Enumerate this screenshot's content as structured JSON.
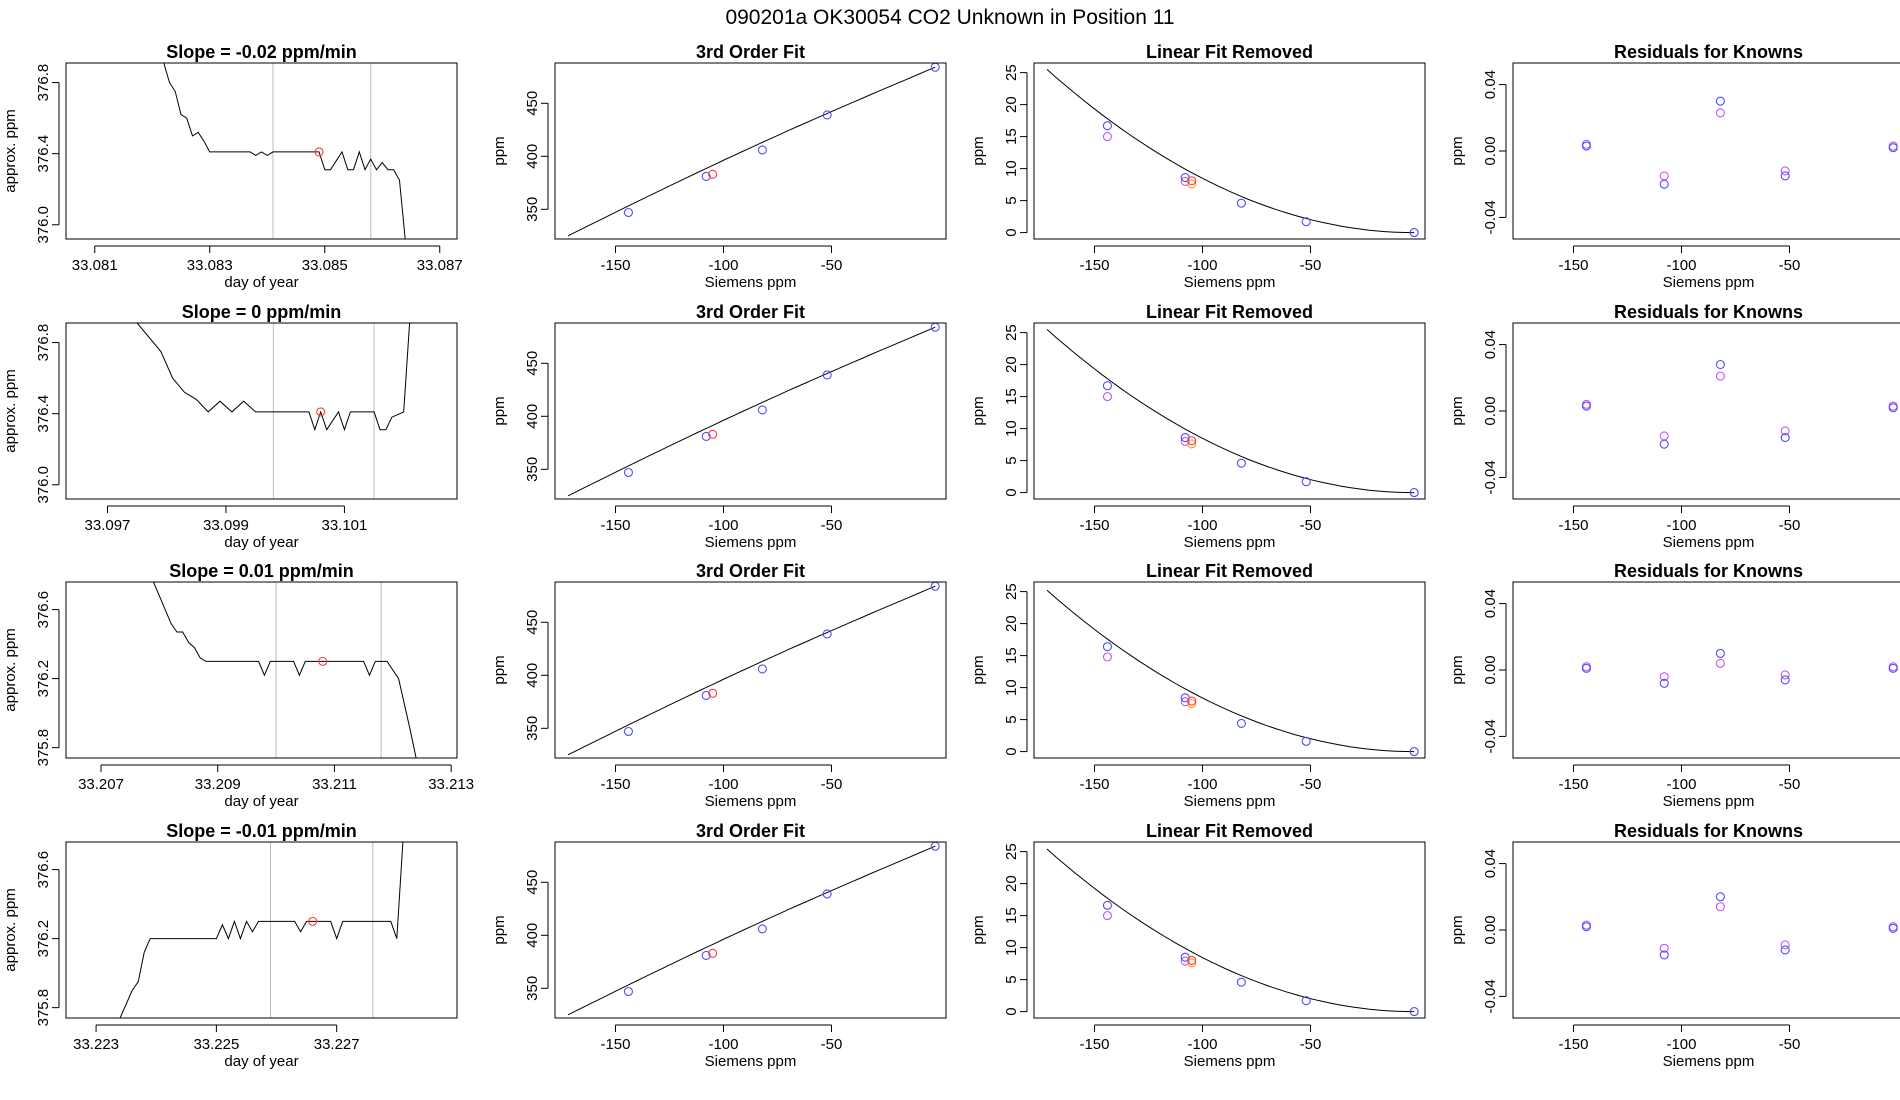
{
  "figure": {
    "title": "090201a     OK30054    CO2 Unknown in Position  11"
  },
  "colors": {
    "known": "#4b4bff",
    "known_alt": "#c454ff",
    "unknown": "#ff3b3b",
    "unknown_alt": "#ff9a1f",
    "marker": "#bdbdbd"
  },
  "chart_data": [
    {
      "type": "line",
      "title": "Slope =  -0.02  ppm/min",
      "xlabel": "day of year",
      "ylabel": "approx. ppm",
      "xlim": [
        33.0805,
        33.0873
      ],
      "ylim": [
        375.92,
        376.91
      ],
      "xticks": [
        33.081,
        33.083,
        33.085,
        33.087
      ],
      "xtick_labels": [
        "33.081",
        "33.083",
        "33.085",
        "33.087"
      ],
      "yticks": [
        376.0,
        376.4,
        376.8
      ],
      "ytick_labels": [
        "376.0",
        "376.4",
        "376.8"
      ],
      "vlines": [
        33.0841,
        33.0858
      ],
      "trace_x": [
        33.0822,
        33.0823,
        33.0824,
        33.0825,
        33.0826,
        33.0827,
        33.0828,
        33.0829,
        33.083,
        33.0831,
        33.0837,
        33.0838,
        33.0839,
        33.084,
        33.0841,
        33.0849,
        33.085,
        33.0851,
        33.0853,
        33.0854,
        33.0855,
        33.0856,
        33.0857,
        33.0858,
        33.0859,
        33.086,
        33.0861,
        33.0862,
        33.0863,
        33.0864
      ],
      "trace_y": [
        376.91,
        376.8,
        376.75,
        376.62,
        376.6,
        376.5,
        376.52,
        376.47,
        376.41,
        376.41,
        376.41,
        376.39,
        376.41,
        376.39,
        376.41,
        376.41,
        376.31,
        376.31,
        376.41,
        376.31,
        376.31,
        376.41,
        376.31,
        376.37,
        376.31,
        376.35,
        376.31,
        376.31,
        376.25,
        375.92
      ],
      "unknown_point": {
        "x": 33.0849,
        "y": 376.41
      }
    },
    {
      "type": "line",
      "title": "3rd Order Fit",
      "xlabel": "Siemens ppm",
      "ylabel": "ppm",
      "xlim": [
        -178,
        3
      ],
      "ylim": [
        322,
        488
      ],
      "xticks": [
        -150,
        -100,
        -50
      ],
      "xtick_labels": [
        "-150",
        "-100",
        "-50"
      ],
      "yticks": [
        350,
        400,
        450
      ],
      "ytick_labels": [
        "350",
        "400",
        "450"
      ],
      "curve": {
        "x1": -172,
        "x2": -2,
        "y1": 325,
        "y2": 484
      },
      "known_points": {
        "x": [
          -144,
          -108,
          -82,
          -52,
          -2
        ],
        "y": [
          347,
          381,
          406,
          439,
          484
        ]
      },
      "unknown_points": {
        "x": [
          -105
        ],
        "y": [
          383
        ]
      }
    },
    {
      "type": "line",
      "title": "Linear Fit Removed",
      "xlabel": "Siemens ppm",
      "ylabel": "ppm",
      "xlim": [
        -178,
        3
      ],
      "ylim": [
        -1,
        26.5
      ],
      "xticks": [
        -150,
        -100,
        -50
      ],
      "xtick_labels": [
        "-150",
        "-100",
        "-50"
      ],
      "yticks": [
        0,
        5,
        10,
        15,
        20,
        25
      ],
      "ytick_labels": [
        "0",
        "5",
        "10",
        "15",
        "20",
        "25"
      ],
      "curve": {
        "x1": -172,
        "x2": -2,
        "y1": 25.5,
        "y2": 0
      },
      "known_points": {
        "x": [
          -144,
          -108,
          -82,
          -52,
          -2
        ],
        "y": [
          16.7,
          8.6,
          4.6,
          1.7,
          0
        ]
      },
      "known_points_alt": {
        "x": [
          -144,
          -108
        ],
        "y": [
          15.0,
          8.0
        ]
      },
      "unknown_points": {
        "x": [
          -105
        ],
        "y": [
          8.1
        ]
      },
      "unknown_points_alt": {
        "x": [
          -105
        ],
        "y": [
          7.6
        ]
      }
    },
    {
      "type": "scatter",
      "title": "Residuals for Knowns",
      "xlabel": "Siemens ppm",
      "ylabel": "ppm",
      "xlim": [
        -178,
        3
      ],
      "ylim": [
        -0.053,
        0.053
      ],
      "xticks": [
        -150,
        -100,
        -50
      ],
      "xtick_labels": [
        "-150",
        "-100",
        "-50"
      ],
      "yticks": [
        -0.04,
        0.0,
        0.04
      ],
      "ytick_labels": [
        "-0.04",
        "0.00",
        "0.04"
      ],
      "known_points": {
        "x": [
          -144,
          -108,
          -82,
          -52,
          -2
        ],
        "y": [
          0.003,
          -0.02,
          0.03,
          -0.015,
          0.002
        ]
      },
      "known_points_alt": {
        "x": [
          -144,
          -108,
          -82,
          -52,
          -2
        ],
        "y": [
          0.004,
          -0.015,
          0.023,
          -0.012,
          0.003
        ]
      }
    },
    {
      "type": "line",
      "title": "Slope =  0  ppm/min",
      "xlabel": "day of year",
      "ylabel": "approx. ppm",
      "xlim": [
        33.0963,
        33.1029
      ],
      "ylim": [
        375.92,
        376.91
      ],
      "xticks": [
        33.097,
        33.099,
        33.101
      ],
      "xtick_labels": [
        "33.097",
        "33.099",
        "33.101"
      ],
      "yticks": [
        376.0,
        376.4,
        376.8
      ],
      "ytick_labels": [
        "376.0",
        "376.4",
        "376.8"
      ],
      "vlines": [
        33.0998,
        33.1015
      ],
      "trace_x": [
        33.0975,
        33.0979,
        33.0981,
        33.0983,
        33.0985,
        33.0987,
        33.0989,
        33.0991,
        33.0993,
        33.0995,
        33.0997,
        33.1,
        33.1004,
        33.1005,
        33.1006,
        33.1007,
        33.1009,
        33.101,
        33.1011,
        33.1015,
        33.1016,
        33.1017,
        33.1018,
        33.102,
        33.1021
      ],
      "trace_y": [
        376.91,
        376.75,
        376.6,
        376.52,
        376.48,
        376.41,
        376.47,
        376.41,
        376.47,
        376.41,
        376.41,
        376.41,
        376.41,
        376.31,
        376.41,
        376.31,
        376.41,
        376.31,
        376.41,
        376.41,
        376.31,
        376.31,
        376.38,
        376.41,
        376.91
      ],
      "unknown_point": {
        "x": 33.1006,
        "y": 376.41
      }
    },
    {
      "type": "line",
      "title": "3rd Order Fit",
      "xlabel": "Siemens ppm",
      "ylabel": "ppm",
      "xlim": [
        -178,
        3
      ],
      "ylim": [
        322,
        488
      ],
      "xticks": [
        -150,
        -100,
        -50
      ],
      "xtick_labels": [
        "-150",
        "-100",
        "-50"
      ],
      "yticks": [
        350,
        400,
        450
      ],
      "ytick_labels": [
        "350",
        "400",
        "450"
      ],
      "curve": {
        "x1": -172,
        "x2": -2,
        "y1": 325,
        "y2": 484
      },
      "known_points": {
        "x": [
          -144,
          -108,
          -82,
          -52,
          -2
        ],
        "y": [
          347,
          381,
          406,
          439,
          484
        ]
      },
      "unknown_points": {
        "x": [
          -105
        ],
        "y": [
          383
        ]
      }
    },
    {
      "type": "line",
      "title": "Linear Fit Removed",
      "xlabel": "Siemens ppm",
      "ylabel": "ppm",
      "xlim": [
        -178,
        3
      ],
      "ylim": [
        -1,
        26.5
      ],
      "xticks": [
        -150,
        -100,
        -50
      ],
      "xtick_labels": [
        "-150",
        "-100",
        "-50"
      ],
      "yticks": [
        0,
        5,
        10,
        15,
        20,
        25
      ],
      "ytick_labels": [
        "0",
        "5",
        "10",
        "15",
        "20",
        "25"
      ],
      "curve": {
        "x1": -172,
        "x2": -2,
        "y1": 25.5,
        "y2": 0
      },
      "known_points": {
        "x": [
          -144,
          -108,
          -82,
          -52,
          -2
        ],
        "y": [
          16.7,
          8.6,
          4.6,
          1.7,
          0
        ]
      },
      "known_points_alt": {
        "x": [
          -144,
          -108
        ],
        "y": [
          15.0,
          8.0
        ]
      },
      "unknown_points": {
        "x": [
          -105
        ],
        "y": [
          8.1
        ]
      },
      "unknown_points_alt": {
        "x": [
          -105
        ],
        "y": [
          7.6
        ]
      }
    },
    {
      "type": "scatter",
      "title": "Residuals for Knowns",
      "xlabel": "Siemens ppm",
      "ylabel": "ppm",
      "xlim": [
        -178,
        3
      ],
      "ylim": [
        -0.053,
        0.053
      ],
      "xticks": [
        -150,
        -100,
        -50
      ],
      "xtick_labels": [
        "-150",
        "-100",
        "-50"
      ],
      "yticks": [
        -0.04,
        0.0,
        0.04
      ],
      "ytick_labels": [
        "-0.04",
        "0.00",
        "0.04"
      ],
      "known_points": {
        "x": [
          -144,
          -108,
          -82,
          -52,
          -2
        ],
        "y": [
          0.003,
          -0.02,
          0.028,
          -0.016,
          0.002
        ]
      },
      "known_points_alt": {
        "x": [
          -144,
          -108,
          -82,
          -52,
          -2
        ],
        "y": [
          0.004,
          -0.015,
          0.021,
          -0.012,
          0.003
        ]
      }
    },
    {
      "type": "line",
      "title": "Slope =  0.01  ppm/min",
      "xlabel": "day of year",
      "ylabel": "approx. ppm",
      "xlim": [
        33.2064,
        33.2131
      ],
      "ylim": [
        375.74,
        376.76
      ],
      "xticks": [
        33.207,
        33.209,
        33.211,
        33.213
      ],
      "xtick_labels": [
        "33.207",
        "33.209",
        "33.211",
        "33.213"
      ],
      "yticks": [
        375.8,
        376.2,
        376.6
      ],
      "ytick_labels": [
        "375.8",
        "376.2",
        "376.6"
      ],
      "vlines": [
        33.21,
        33.2118
      ],
      "trace_x": [
        33.2079,
        33.2082,
        33.2083,
        33.2084,
        33.2085,
        33.2086,
        33.2087,
        33.2088,
        33.2097,
        33.2098,
        33.2099,
        33.2103,
        33.2104,
        33.2105,
        33.2115,
        33.2116,
        33.2117,
        33.2119,
        33.2121,
        33.2123,
        33.2124
      ],
      "trace_y": [
        376.76,
        376.52,
        376.47,
        376.47,
        376.41,
        376.38,
        376.32,
        376.3,
        376.3,
        376.22,
        376.3,
        376.3,
        376.22,
        376.3,
        376.3,
        376.22,
        376.3,
        376.3,
        376.2,
        375.9,
        375.74
      ],
      "unknown_point": {
        "x": 33.2108,
        "y": 376.3
      }
    },
    {
      "type": "line",
      "title": "3rd Order Fit",
      "xlabel": "Siemens ppm",
      "ylabel": "ppm",
      "xlim": [
        -178,
        3
      ],
      "ylim": [
        322,
        488
      ],
      "xticks": [
        -150,
        -100,
        -50
      ],
      "xtick_labels": [
        "-150",
        "-100",
        "-50"
      ],
      "yticks": [
        350,
        400,
        450
      ],
      "ytick_labels": [
        "350",
        "400",
        "450"
      ],
      "curve": {
        "x1": -172,
        "x2": -2,
        "y1": 325,
        "y2": 484
      },
      "known_points": {
        "x": [
          -144,
          -108,
          -82,
          -52,
          -2
        ],
        "y": [
          347,
          381,
          406,
          439,
          484
        ]
      },
      "unknown_points": {
        "x": [
          -105
        ],
        "y": [
          383
        ]
      }
    },
    {
      "type": "line",
      "title": "Linear Fit Removed",
      "xlabel": "Siemens ppm",
      "ylabel": "ppm",
      "xlim": [
        -178,
        3
      ],
      "ylim": [
        -1,
        26.5
      ],
      "xticks": [
        -150,
        -100,
        -50
      ],
      "xtick_labels": [
        "-150",
        "-100",
        "-50"
      ],
      "yticks": [
        0,
        5,
        10,
        15,
        20,
        25
      ],
      "ytick_labels": [
        "0",
        "5",
        "10",
        "15",
        "20",
        "25"
      ],
      "curve": {
        "x1": -172,
        "x2": -2,
        "y1": 25.2,
        "y2": 0
      },
      "known_points": {
        "x": [
          -144,
          -108,
          -82,
          -52,
          -2
        ],
        "y": [
          16.4,
          8.4,
          4.4,
          1.6,
          0
        ]
      },
      "known_points_alt": {
        "x": [
          -144,
          -108
        ],
        "y": [
          14.8,
          7.8
        ]
      },
      "unknown_points": {
        "x": [
          -105
        ],
        "y": [
          7.9
        ]
      },
      "unknown_points_alt": {
        "x": [
          -105
        ],
        "y": [
          7.5
        ]
      }
    },
    {
      "type": "scatter",
      "title": "Residuals for Knowns",
      "xlabel": "Siemens ppm",
      "ylabel": "ppm",
      "xlim": [
        -178,
        3
      ],
      "ylim": [
        -0.053,
        0.053
      ],
      "xticks": [
        -150,
        -100,
        -50
      ],
      "xtick_labels": [
        "-150",
        "-100",
        "-50"
      ],
      "yticks": [
        -0.04,
        0.0,
        0.04
      ],
      "ytick_labels": [
        "-0.04",
        "0.00",
        "0.04"
      ],
      "known_points": {
        "x": [
          -144,
          -108,
          -82,
          -52,
          -2
        ],
        "y": [
          0.001,
          -0.008,
          0.01,
          -0.006,
          0.001
        ]
      },
      "known_points_alt": {
        "x": [
          -144,
          -108,
          -82,
          -52,
          -2
        ],
        "y": [
          0.002,
          -0.004,
          0.004,
          -0.003,
          0.002
        ]
      }
    },
    {
      "type": "line",
      "title": "Slope =  -0.01  ppm/min",
      "xlabel": "day of year",
      "ylabel": "approx. ppm",
      "xlim": [
        33.2225,
        33.229
      ],
      "ylim": [
        375.74,
        376.76
      ],
      "xticks": [
        33.223,
        33.225,
        33.227
      ],
      "xtick_labels": [
        "33.223",
        "33.225",
        "33.227"
      ],
      "yticks": [
        375.8,
        376.2,
        376.6
      ],
      "ytick_labels": [
        "375.8",
        "376.2",
        "376.6"
      ],
      "vlines": [
        33.2259,
        33.2276
      ],
      "trace_x": [
        33.2234,
        33.2236,
        33.2237,
        33.2238,
        33.2239,
        33.225,
        33.2251,
        33.2252,
        33.2253,
        33.2254,
        33.2255,
        33.2256,
        33.2257,
        33.2263,
        33.2264,
        33.2265,
        33.2269,
        33.227,
        33.2271,
        33.2272,
        33.2279,
        33.228,
        33.2281
      ],
      "trace_y": [
        375.74,
        375.9,
        375.95,
        376.12,
        376.2,
        376.2,
        376.28,
        376.2,
        376.3,
        376.2,
        376.3,
        376.24,
        376.3,
        376.3,
        376.24,
        376.3,
        376.3,
        376.2,
        376.3,
        376.3,
        376.3,
        376.2,
        376.76
      ],
      "unknown_point": {
        "x": 33.2266,
        "y": 376.3
      }
    },
    {
      "type": "line",
      "title": "3rd Order Fit",
      "xlabel": "Siemens ppm",
      "ylabel": "ppm",
      "xlim": [
        -178,
        3
      ],
      "ylim": [
        322,
        488
      ],
      "xticks": [
        -150,
        -100,
        -50
      ],
      "xtick_labels": [
        "-150",
        "-100",
        "-50"
      ],
      "yticks": [
        350,
        400,
        450
      ],
      "ytick_labels": [
        "350",
        "400",
        "450"
      ],
      "curve": {
        "x1": -172,
        "x2": -2,
        "y1": 325,
        "y2": 484
      },
      "known_points": {
        "x": [
          -144,
          -108,
          -82,
          -52,
          -2
        ],
        "y": [
          347,
          381,
          406,
          439,
          484
        ]
      },
      "unknown_points": {
        "x": [
          -105
        ],
        "y": [
          383
        ]
      }
    },
    {
      "type": "line",
      "title": "Linear Fit Removed",
      "xlabel": "Siemens ppm",
      "ylabel": "ppm",
      "xlim": [
        -178,
        3
      ],
      "ylim": [
        -1,
        26.5
      ],
      "xticks": [
        -150,
        -100,
        -50
      ],
      "xtick_labels": [
        "-150",
        "-100",
        "-50"
      ],
      "yticks": [
        0,
        5,
        10,
        15,
        20,
        25
      ],
      "ytick_labels": [
        "0",
        "5",
        "10",
        "15",
        "20",
        "25"
      ],
      "curve": {
        "x1": -172,
        "x2": -2,
        "y1": 25.4,
        "y2": 0
      },
      "known_points": {
        "x": [
          -144,
          -108,
          -82,
          -52,
          -2
        ],
        "y": [
          16.6,
          8.5,
          4.6,
          1.7,
          0
        ]
      },
      "known_points_alt": {
        "x": [
          -144,
          -108
        ],
        "y": [
          15.0,
          7.9
        ]
      },
      "unknown_points": {
        "x": [
          -105
        ],
        "y": [
          8.0
        ]
      },
      "unknown_points_alt": {
        "x": [
          -105
        ],
        "y": [
          7.6
        ]
      }
    },
    {
      "type": "scatter",
      "title": "Residuals for Knowns",
      "xlabel": "Siemens ppm",
      "ylabel": "ppm",
      "xlim": [
        -178,
        3
      ],
      "ylim": [
        -0.053,
        0.053
      ],
      "xticks": [
        -150,
        -100,
        -50
      ],
      "xtick_labels": [
        "-150",
        "-100",
        "-50"
      ],
      "yticks": [
        -0.04,
        0.0,
        0.04
      ],
      "ytick_labels": [
        "-0.04",
        "0.00",
        "0.04"
      ],
      "known_points": {
        "x": [
          -144,
          -108,
          -82,
          -52,
          -2
        ],
        "y": [
          0.002,
          -0.015,
          0.02,
          -0.012,
          0.001
        ]
      },
      "known_points_alt": {
        "x": [
          -144,
          -108,
          -82,
          -52,
          -2
        ],
        "y": [
          0.003,
          -0.011,
          0.014,
          -0.009,
          0.002
        ]
      }
    }
  ]
}
